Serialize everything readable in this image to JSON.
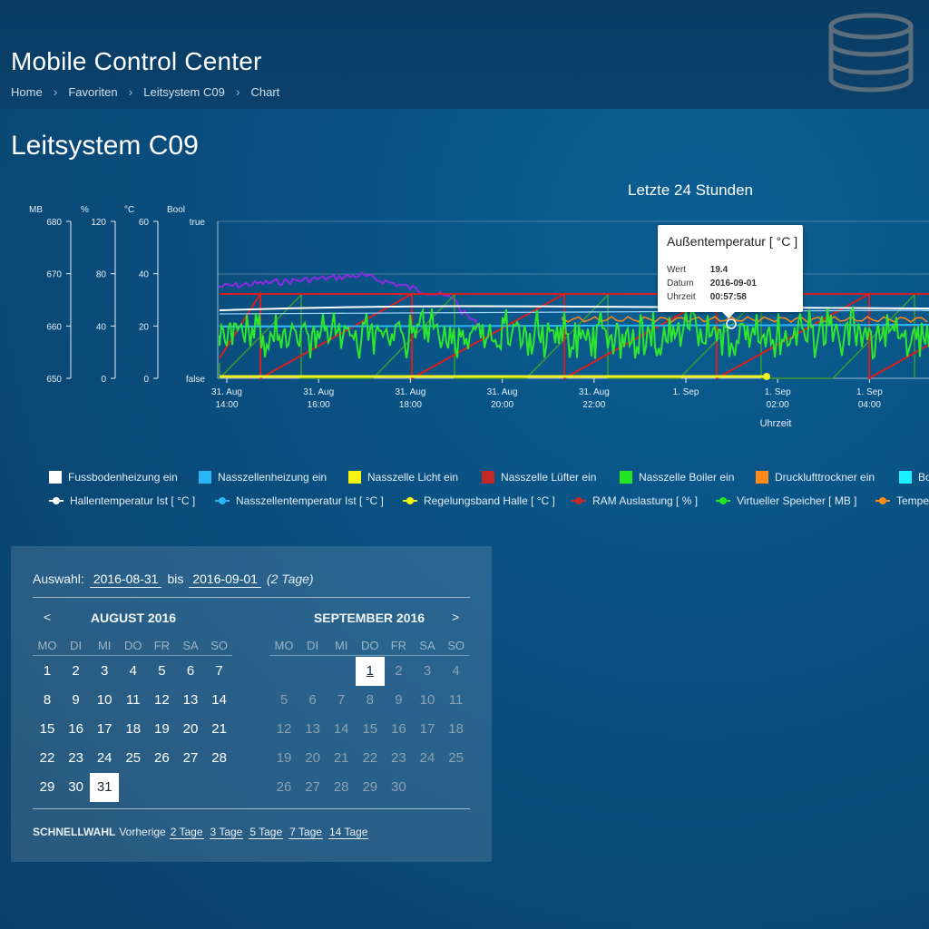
{
  "header": {
    "app_title": "Mobile Control Center",
    "breadcrumb": [
      "Home",
      "Favoriten",
      "Leitsystem C09",
      "Chart"
    ]
  },
  "page": {
    "title": "Leitsystem C09"
  },
  "chart_data": {
    "type": "line",
    "title": "Letzte 24 Stunden",
    "xlabel": "Uhrzeit",
    "x_ticks": [
      [
        "31. Aug",
        "14:00"
      ],
      [
        "31. Aug",
        "16:00"
      ],
      [
        "31. Aug",
        "18:00"
      ],
      [
        "31. Aug",
        "20:00"
      ],
      [
        "31. Aug",
        "22:00"
      ],
      [
        "1. Sep",
        ""
      ],
      [
        "1. Sep",
        "02:00"
      ],
      [
        "1. Sep",
        "04:00"
      ]
    ],
    "y_axes": [
      {
        "unit": "MB",
        "ticks": [
          "680",
          "670",
          "660",
          "650"
        ],
        "range": [
          650,
          680
        ]
      },
      {
        "unit": "%",
        "ticks": [
          "120",
          "80",
          "40",
          "0"
        ],
        "range": [
          0,
          120
        ]
      },
      {
        "unit": "°C",
        "ticks": [
          "60",
          "40",
          "20",
          "0"
        ],
        "range": [
          0,
          60
        ]
      },
      {
        "unit": "Bool",
        "ticks": [
          "true",
          "false"
        ],
        "range": [
          0,
          1
        ]
      }
    ],
    "grid": true,
    "legend": "bottom",
    "series_colors": {
      "purple": "#8a2be2",
      "red": "#d42020",
      "green": "#2ee62e",
      "white": "#ffffff",
      "cyan": "#29b6f6",
      "yellow": "#f0f020",
      "orange": "#ff8a1a",
      "olive": "#3d9a34"
    }
  },
  "tooltip": {
    "title": "Außentemperatur [ °C ]",
    "rows": [
      {
        "k": "Wert",
        "v": "19.4"
      },
      {
        "k": "Datum",
        "v": "2016-09-01"
      },
      {
        "k": "Uhrzeit",
        "v": "00:57:58"
      }
    ]
  },
  "legend": {
    "row1": [
      {
        "label": "Fussbodenheizung ein",
        "color": "#ffffff"
      },
      {
        "label": "Nasszellenheizung ein",
        "color": "#29b6f6"
      },
      {
        "label": "Nasszelle Licht ein",
        "color": "#f5f511"
      },
      {
        "label": "Nasszelle Lüfter ein",
        "color": "#c62828"
      },
      {
        "label": "Nasszelle Boiler ein",
        "color": "#22e622"
      },
      {
        "label": "Drucklufttrockner ein",
        "color": "#ff8c1a"
      },
      {
        "label": "Bo",
        "color": "#18f0ff"
      }
    ],
    "row2": [
      {
        "label": "Hallentemperatur Ist [ °C ]",
        "color": "#ffffff"
      },
      {
        "label": "Nasszellentemperatur Ist [ °C ]",
        "color": "#29b6f6"
      },
      {
        "label": "Regelungsband Halle [ °C ]",
        "color": "#f5f511"
      },
      {
        "label": "RAM Auslastung [ % ]",
        "color": "#c62828"
      },
      {
        "label": "Virtueller Speicher [ MB ]",
        "color": "#22e622"
      },
      {
        "label": "Temper",
        "color": "#ff8c1a"
      }
    ]
  },
  "calendar": {
    "selection_label": "Auswahl:",
    "from": "2016-08-31",
    "to_label": "bis",
    "to": "2016-09-01",
    "days_label": "(2 Tage)",
    "prev_label": "<",
    "next_label": ">",
    "dow": [
      "MO",
      "DI",
      "MI",
      "DO",
      "FR",
      "SA",
      "SO"
    ],
    "left_month": "AUGUST 2016",
    "right_month": "SEPTEMBER 2016",
    "quick_label": "SCHNELLWAHL",
    "quick_prev": "Vorherige",
    "quick_options": [
      "2 Tage",
      "3 Tage",
      "5 Tage",
      "7 Tage",
      "14 Tage"
    ]
  }
}
